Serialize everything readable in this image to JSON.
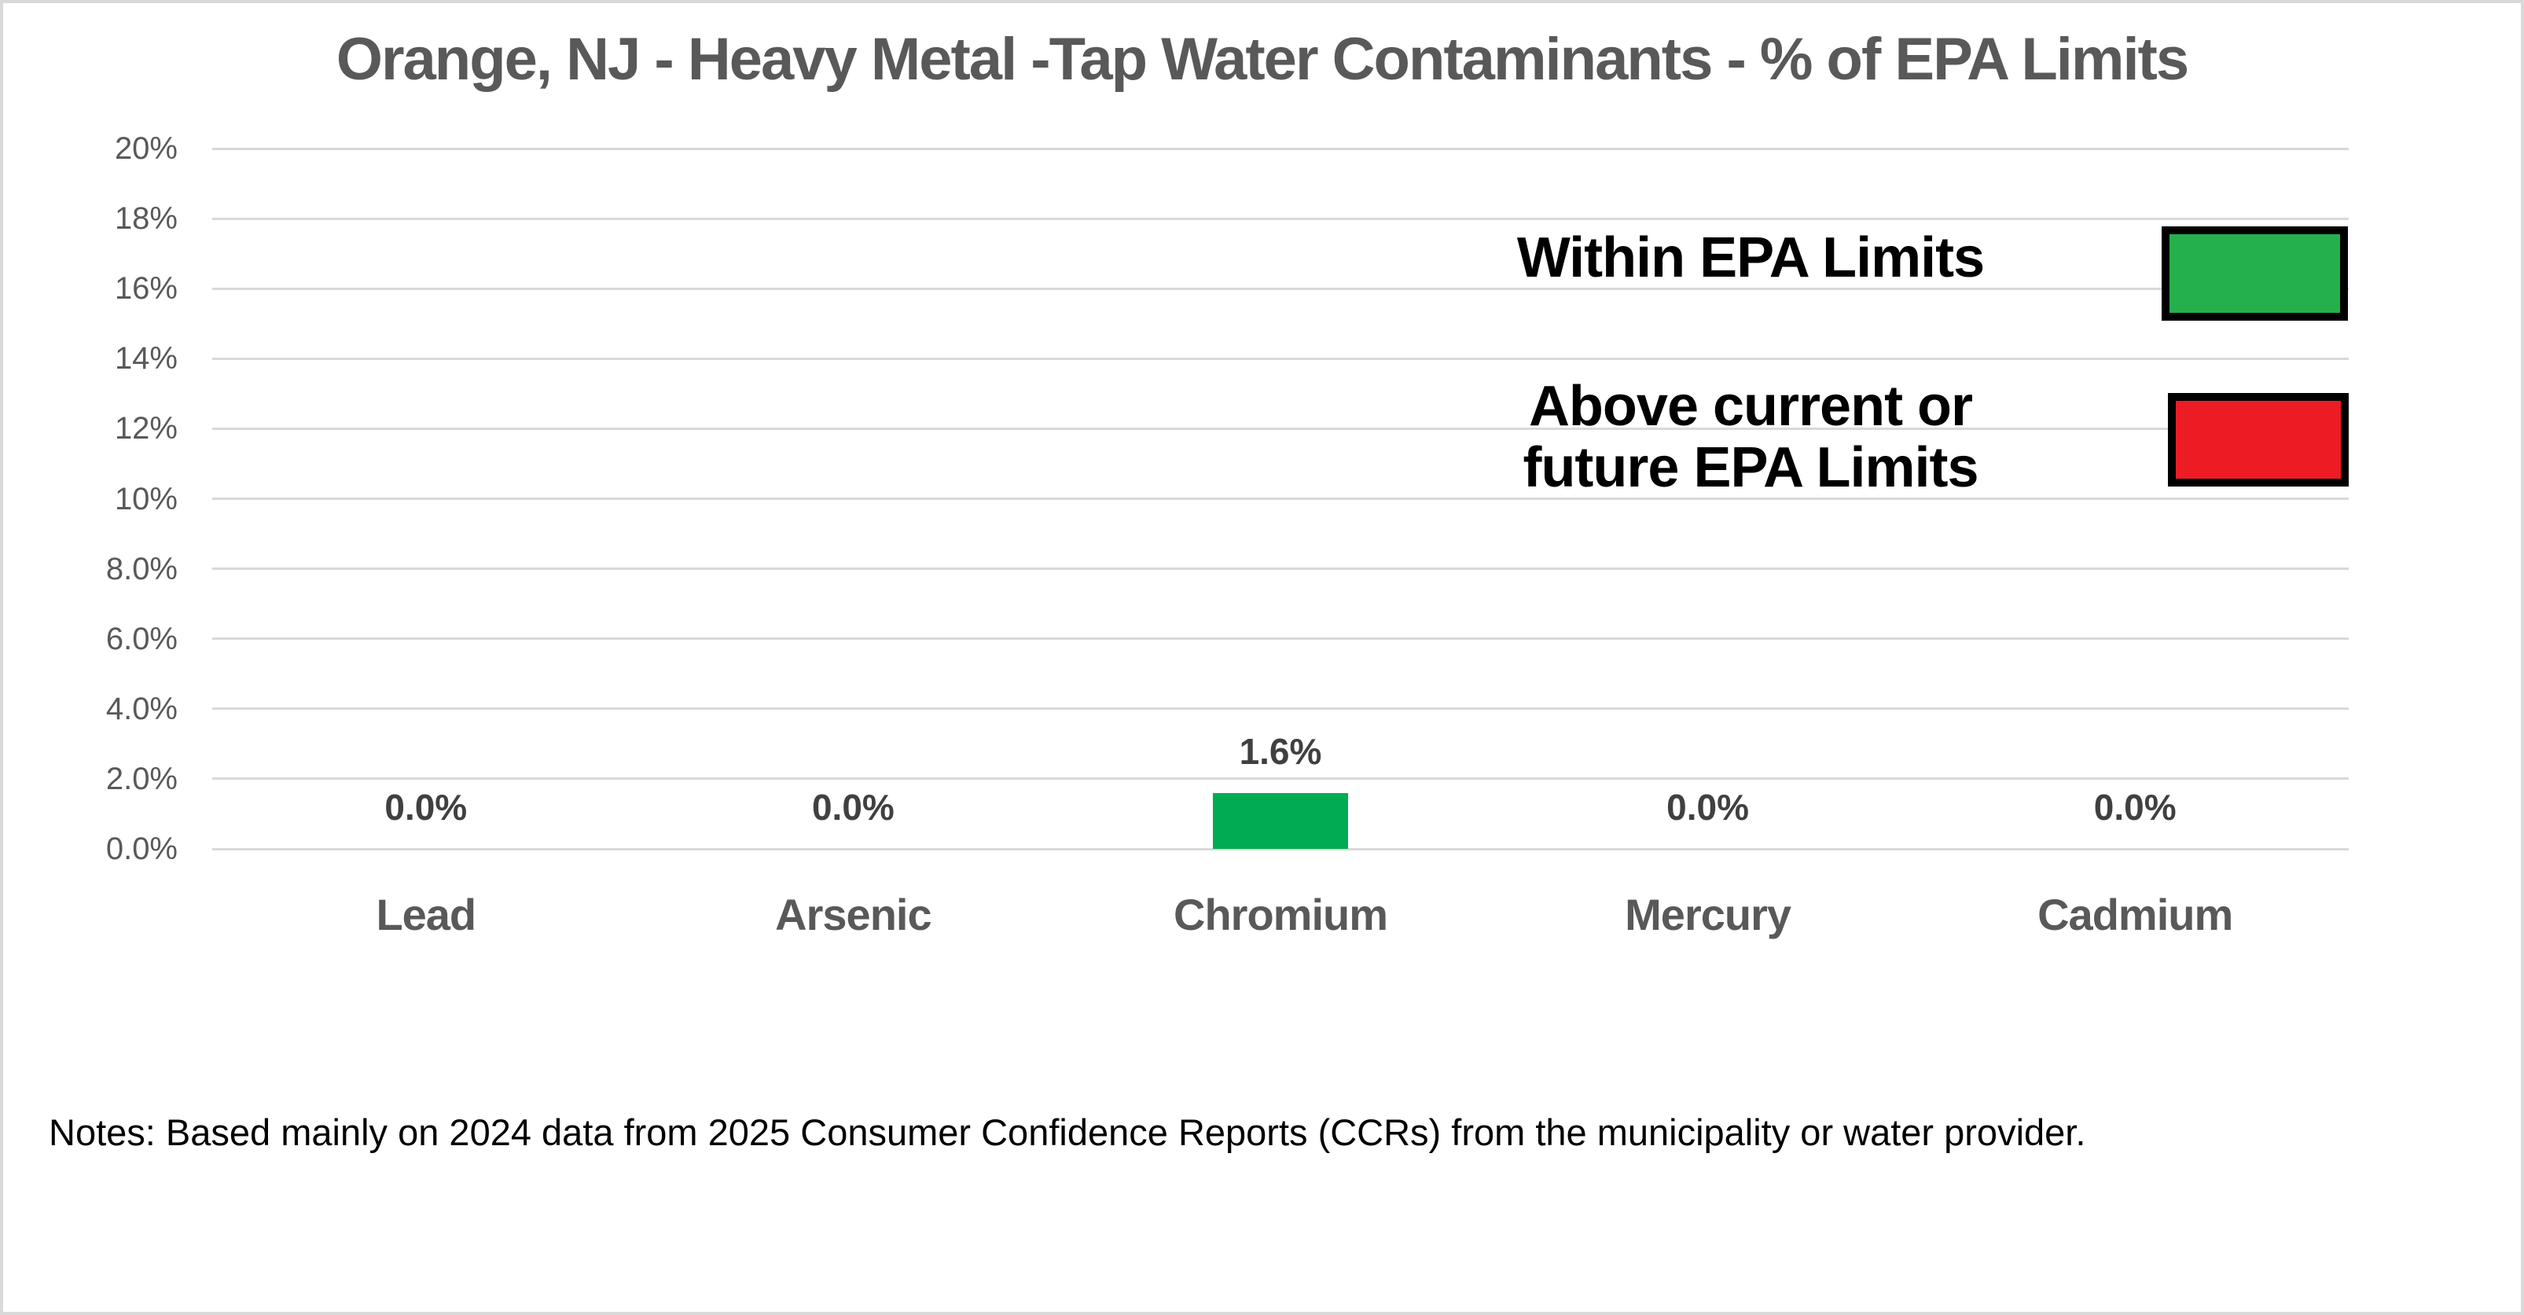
{
  "chart_data": {
    "type": "bar",
    "title": "Orange, NJ - Heavy Metal -Tap Water Contaminants - % of EPA Limits",
    "xlabel": "",
    "ylabel": "",
    "categories": [
      "Lead",
      "Arsenic",
      "Chromium",
      "Mercury",
      "Cadmium"
    ],
    "values": [
      0.0,
      0.0,
      1.6,
      0.0,
      0.0
    ],
    "value_labels": [
      "0.0%",
      "0.0%",
      "1.6%",
      "0.0%",
      "0.0%"
    ],
    "bar_statuses": [
      "within",
      "within",
      "within",
      "within",
      "within"
    ],
    "ylim": [
      0,
      20
    ],
    "y_ticks": [
      "20%",
      "18%",
      "16%",
      "14%",
      "12%",
      "10%",
      "8.0%",
      "6.0%",
      "4.0%",
      "2.0%",
      "0.0%"
    ],
    "grid": true,
    "legend_position": "upper-right",
    "legend": {
      "items": [
        {
          "name": "within",
          "lines": [
            "Within EPA Limits"
          ],
          "swatch_color": "#24B04C"
        },
        {
          "name": "above",
          "lines": [
            "Above current or",
            "future EPA Limits"
          ],
          "swatch_color": "#ED1C24"
        }
      ]
    }
  },
  "notes": "Notes: Based mainly on 2024 data from 2025 Consumer Confidence Reports (CCRs) from the municipality or water provider.",
  "colors": {
    "background": "#FFFFFF",
    "border": "#D9D9D9",
    "title_text": "#595959",
    "axis_text": "#595959",
    "value_label_text": "#404040",
    "category_text": "#595959",
    "gridline": "#D9D9D9",
    "bar_within": "#00AB53",
    "bar_above": "#ED1C24",
    "legend_text": "#000000",
    "legend_swatch_border": "#000000"
  }
}
